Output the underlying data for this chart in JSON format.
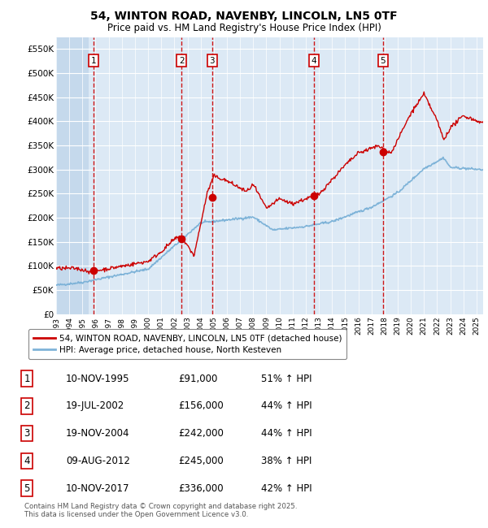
{
  "title_line1": "54, WINTON ROAD, NAVENBY, LINCOLN, LN5 0TF",
  "title_line2": "Price paid vs. HM Land Registry's House Price Index (HPI)",
  "ylim": [
    0,
    575000
  ],
  "yticks": [
    0,
    50000,
    100000,
    150000,
    200000,
    250000,
    300000,
    350000,
    400000,
    450000,
    500000,
    550000
  ],
  "bg_color": "#dce9f5",
  "grid_color": "#ffffff",
  "red_line_color": "#cc0000",
  "blue_line_color": "#7eb3d8",
  "sale_marker_color": "#cc0000",
  "dashed_line_color": "#cc0000",
  "sale_dates_x": [
    1995.86,
    2002.54,
    2004.88,
    2012.6,
    2017.86
  ],
  "sale_prices_y": [
    91000,
    156000,
    242000,
    245000,
    336000
  ],
  "sale_labels": [
    "1",
    "2",
    "3",
    "4",
    "5"
  ],
  "legend_red": "54, WINTON ROAD, NAVENBY, LINCOLN, LN5 0TF (detached house)",
  "legend_blue": "HPI: Average price, detached house, North Kesteven",
  "table_rows": [
    [
      "1",
      "10-NOV-1995",
      "£91,000",
      "51% ↑ HPI"
    ],
    [
      "2",
      "19-JUL-2002",
      "£156,000",
      "44% ↑ HPI"
    ],
    [
      "3",
      "19-NOV-2004",
      "£242,000",
      "44% ↑ HPI"
    ],
    [
      "4",
      "09-AUG-2012",
      "£245,000",
      "38% ↑ HPI"
    ],
    [
      "5",
      "10-NOV-2017",
      "£336,000",
      "42% ↑ HPI"
    ]
  ],
  "footnote": "Contains HM Land Registry data © Crown copyright and database right 2025.\nThis data is licensed under the Open Government Licence v3.0.",
  "xmin": 1993.0,
  "xmax": 2025.5
}
